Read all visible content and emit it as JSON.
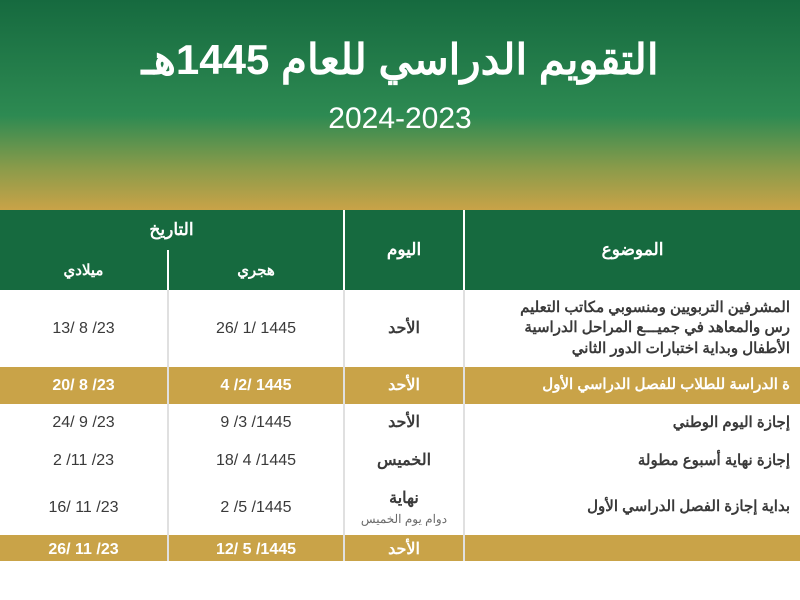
{
  "header": {
    "title": "التقويم الدراسي للعام 1445هـ",
    "subtitle": "2024-2023"
  },
  "table": {
    "headers": {
      "topic": "الموضوع",
      "day": "اليوم",
      "date": "التاريخ",
      "hijri": "هجري",
      "gregorian": "ميلادي"
    },
    "rows": [
      {
        "variant": "white",
        "topic": "المشرفين التربويين ومنسوبي مكاتب التعليم\nرس والمعاهد في جميـــع المراحل الدراسية\nالأطفال وبداية اختبارات الدور الثاني",
        "day": "الأحد",
        "day_sub": "",
        "hijri": "26/ 1/ 1445",
        "gregorian": "13/ 8 /23"
      },
      {
        "variant": "gold",
        "topic": "ة الدراسة للطلاب للفصل الدراسي الأول",
        "day": "الأحد",
        "day_sub": "",
        "hijri": "4 /2/ 1445",
        "gregorian": "20/ 8 /23"
      },
      {
        "variant": "white",
        "topic": "إجازة اليوم الوطني",
        "day": "الأحد",
        "day_sub": "",
        "hijri": "9 /3 /1445",
        "gregorian": "24/ 9 /23"
      },
      {
        "variant": "white",
        "topic": "إجازة نهاية أسبوع مطولة",
        "day": "الخميس",
        "day_sub": "",
        "hijri": "18/ 4 /1445",
        "gregorian": "2 /11 /23"
      },
      {
        "variant": "white",
        "topic": "بداية إجازة الفصل الدراسي الأول",
        "day": "نهاية",
        "day_sub": "دوام يوم الخميس",
        "hijri": "2 /5 /1445",
        "gregorian": "16/ 11 /23"
      }
    ],
    "cut_row": {
      "variant": "gold",
      "topic": "",
      "day": "الأحد",
      "hijri": "12/ 5 /1445",
      "gregorian": "26/ 11 /23"
    }
  },
  "style": {
    "green_dark": "#166a3f",
    "green_mid": "#2d8a52",
    "gold": "#c9a348",
    "olive": "#8a9b4a",
    "text": "#3a3a3a",
    "white": "#ffffff",
    "border": "#e0e0e0"
  }
}
